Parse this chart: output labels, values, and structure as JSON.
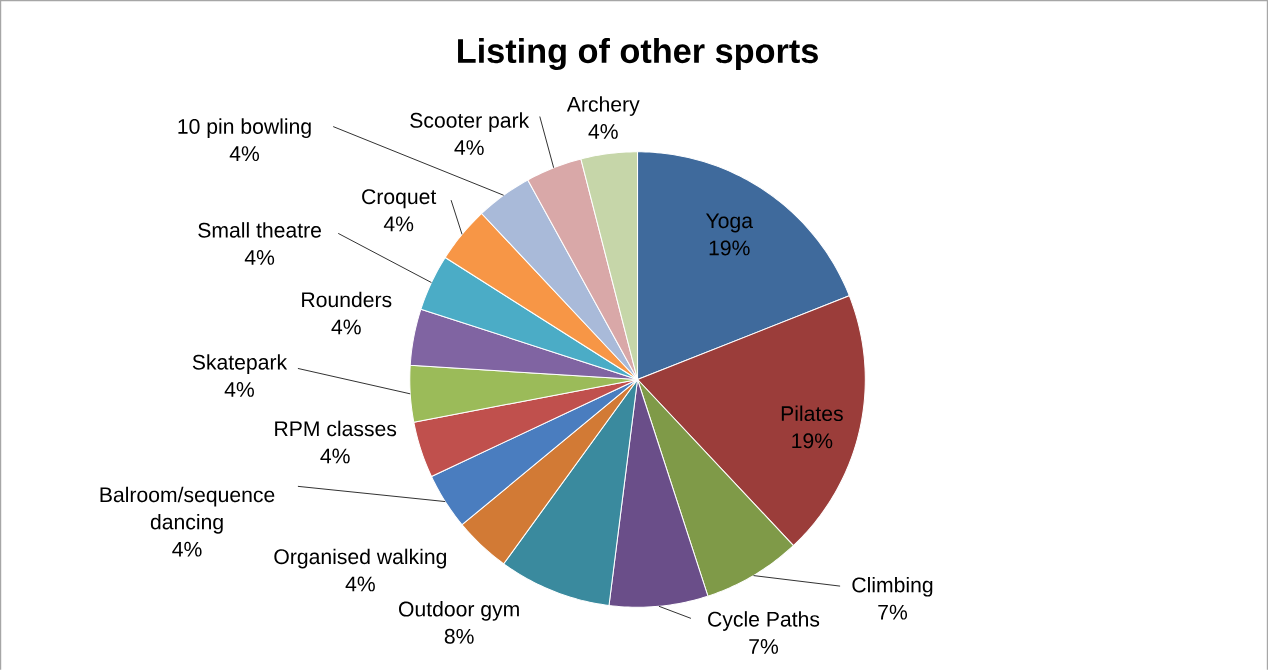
{
  "chart_data": {
    "type": "pie",
    "title": "Listing of other sports",
    "categories": [
      "Yoga",
      "Pilates",
      "Climbing",
      "Cycle Paths",
      "Outdoor gym",
      "Organised walking",
      "Balroom/sequence dancing",
      "RPM classes",
      "Skatepark",
      "Rounders",
      "Small theatre",
      "Croquet",
      "10 pin bowling",
      "Scooter park",
      "Archery"
    ],
    "values": [
      19,
      19,
      7,
      7,
      8,
      4,
      4,
      4,
      4,
      4,
      4,
      4,
      4,
      4,
      4
    ],
    "value_labels": [
      "19%",
      "19%",
      "7%",
      "7%",
      "8%",
      "4%",
      "4%",
      "4%",
      "4%",
      "4%",
      "4%",
      "4%",
      "4%",
      "4%",
      "4%"
    ],
    "colors": [
      "#3f6a9c",
      "#9b3d3a",
      "#7f9a48",
      "#6a4e89",
      "#3a8a9e",
      "#d27a35",
      "#4a7dbf",
      "#c0504d",
      "#9bbb59",
      "#8064a2",
      "#4bacc6",
      "#f79646",
      "#a9bad9",
      "#d9a8a8",
      "#c6d6a9"
    ]
  }
}
